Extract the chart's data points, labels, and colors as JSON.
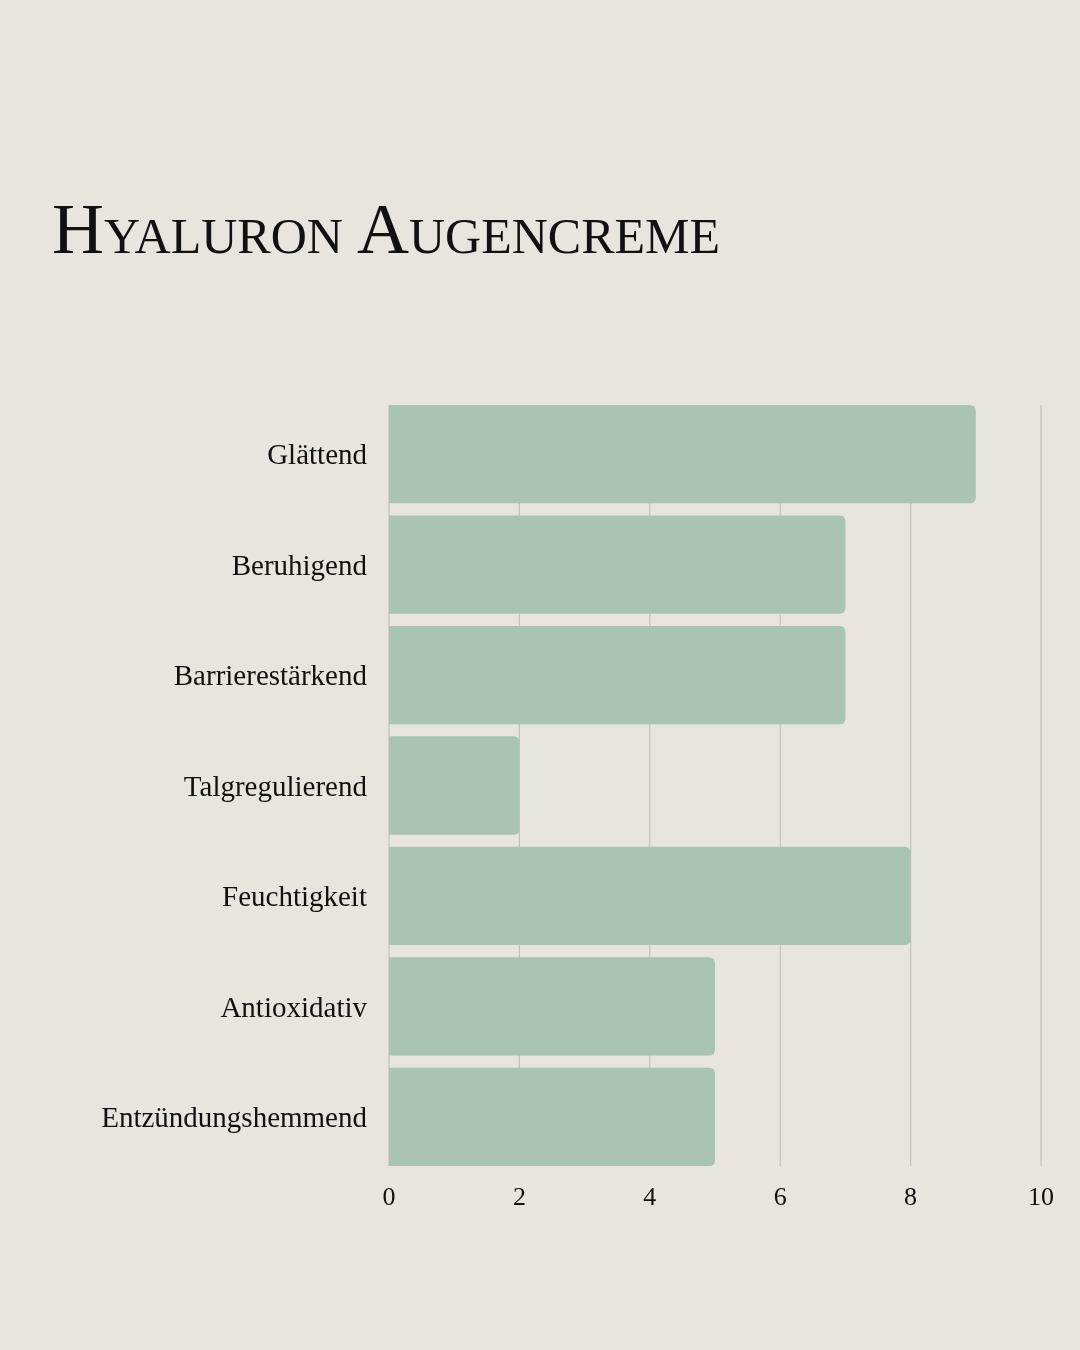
{
  "chart_data": {
    "type": "bar",
    "title": "Hyaluron Augencreme",
    "orientation": "horizontal",
    "categories": [
      "Glättend",
      "Beruhigend",
      "Barrierestärkend",
      "Talgregulierend",
      "Feuchtigkeit",
      "Antioxidativ",
      "Entzündungshemmend"
    ],
    "values": [
      9,
      7,
      7,
      2,
      8,
      5,
      5
    ],
    "color": "#a9c4b3",
    "xlim": [
      0,
      10
    ],
    "xticks": [
      0,
      2,
      4,
      6,
      8,
      10
    ],
    "grid": "x"
  }
}
